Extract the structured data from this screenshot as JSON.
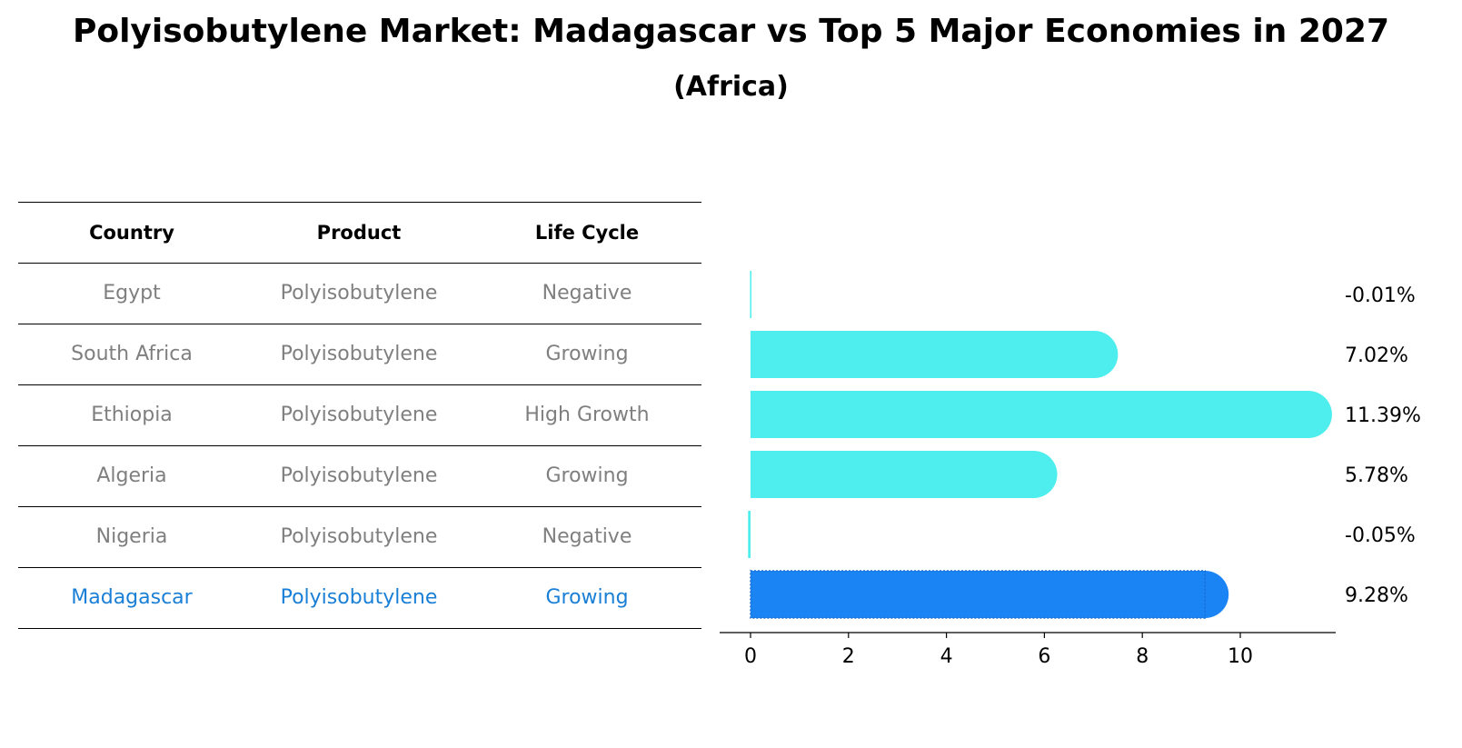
{
  "title": "Polyisobutylene Market: Madagascar vs Top 5 Major Economies in 2027",
  "subtitle": "(Africa)",
  "table": {
    "headers": [
      "Country",
      "Product",
      "Life Cycle"
    ],
    "rows": [
      {
        "country": "Egypt",
        "product": "Polyisobutylene",
        "life_cycle": "Negative"
      },
      {
        "country": "South Africa",
        "product": "Polyisobutylene",
        "life_cycle": "Growing"
      },
      {
        "country": "Ethiopia",
        "product": "Polyisobutylene",
        "life_cycle": "High Growth"
      },
      {
        "country": "Algeria",
        "product": "Polyisobutylene",
        "life_cycle": "Growing"
      },
      {
        "country": "Nigeria",
        "product": "Polyisobutylene",
        "life_cycle": "Negative"
      },
      {
        "country": "Madagascar",
        "product": "Polyisobutylene",
        "life_cycle": "Growing"
      }
    ]
  },
  "colors": {
    "bar": "#4eeeee",
    "highlight": "#1a84f5",
    "highlight_text": "#1a7fd6",
    "muted_text": "#7f7f7f"
  },
  "chart_data": {
    "type": "bar",
    "orientation": "horizontal",
    "categories": [
      "Egypt",
      "South Africa",
      "Ethiopia",
      "Algeria",
      "Nigeria",
      "Madagascar"
    ],
    "values": [
      -0.01,
      7.02,
      11.39,
      5.78,
      -0.05,
      9.28
    ],
    "value_labels": [
      "-0.01%",
      "7.02%",
      "11.39%",
      "5.78%",
      "-0.05%",
      "9.28%"
    ],
    "highlight": "Madagascar",
    "xticks": [
      0,
      2,
      4,
      6,
      8,
      10
    ],
    "xlim": [
      -0.6,
      12.0
    ],
    "grid": false,
    "legend": "none"
  }
}
